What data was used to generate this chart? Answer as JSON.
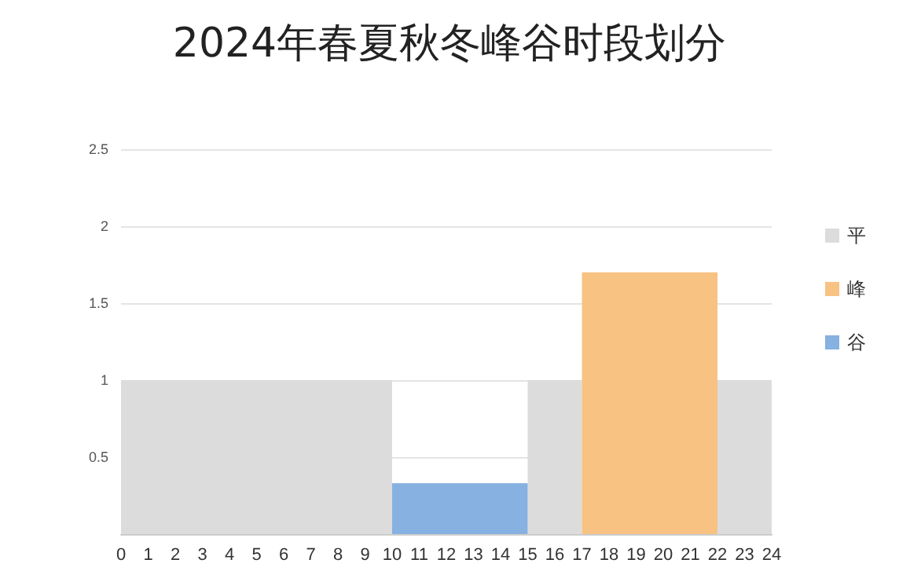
{
  "chart_data": {
    "type": "histogram",
    "title": "2024年春夏秋冬峰谷时段划分",
    "bins": [
      0,
      10,
      15,
      17,
      22,
      24
    ],
    "series": [
      {
        "name": "平",
        "color": "#dcdcdc",
        "values": [
          1,
          null,
          1,
          null,
          1
        ]
      },
      {
        "name": "峰",
        "color": "#f8c282",
        "values": [
          null,
          null,
          null,
          1.7,
          null
        ]
      },
      {
        "name": "谷",
        "color": "#86b1e0",
        "values": [
          null,
          0.33,
          null,
          null,
          null
        ]
      }
    ],
    "xlim": [
      0,
      24
    ],
    "xticks": [
      0,
      1,
      2,
      3,
      4,
      5,
      6,
      7,
      8,
      9,
      10,
      11,
      12,
      13,
      14,
      15,
      16,
      17,
      18,
      19,
      20,
      21,
      22,
      23,
      24
    ],
    "ylim": [
      0,
      2.5
    ],
    "yticks": [
      {
        "value": 0,
        "label": null
      },
      0.5,
      1,
      1.5,
      2,
      2.5
    ],
    "grid": "y",
    "legend": "right"
  }
}
